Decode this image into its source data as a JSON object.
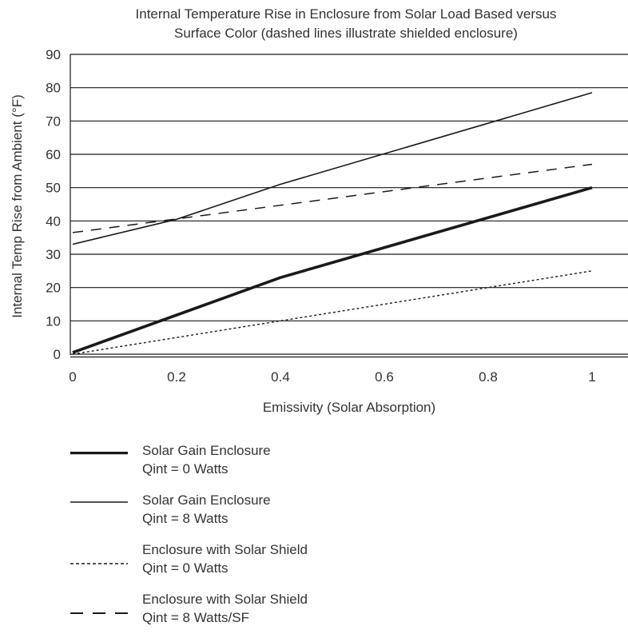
{
  "chart_data": {
    "type": "line",
    "title": [
      "Internal Temperature Rise in Enclosure from Solar Load Based versus",
      "Surface Color (dashed lines illustrate shielded enclosure)"
    ],
    "xlabel": "Emissivity (Solar Absorption)",
    "ylabel": "Internal Temp Rise from Ambient (°F)",
    "xlim": [
      0,
      1.07
    ],
    "ylim": [
      0,
      90
    ],
    "x_ticks": [
      "0",
      "0.2",
      "0.4",
      "0.6",
      "0.8",
      "1"
    ],
    "x_tick_values": [
      0,
      0.2,
      0.4,
      0.6,
      0.8,
      1
    ],
    "y_ticks": [
      "0",
      "10",
      "20",
      "30",
      "40",
      "50",
      "60",
      "70",
      "80",
      "90"
    ],
    "y_tick_values": [
      0,
      10,
      20,
      30,
      40,
      50,
      60,
      70,
      80,
      90
    ],
    "grid": "horizontal",
    "legend_position": "bottom",
    "series": [
      {
        "name": [
          "Solar Gain Enclosure",
          "Qint = 0 Watts"
        ],
        "style": "thick-solid",
        "x": [
          0,
          0.4,
          1
        ],
        "y": [
          0.5,
          23,
          50
        ]
      },
      {
        "name": [
          "Solar Gain Enclosure",
          "Qint = 8 Watts"
        ],
        "style": "solid",
        "x": [
          0,
          0.2,
          0.4,
          1
        ],
        "y": [
          33,
          40.5,
          51,
          78.5
        ]
      },
      {
        "name": [
          "Enclosure with Solar Shield",
          "Qint = 0 Watts"
        ],
        "style": "dotted",
        "x": [
          0,
          1
        ],
        "y": [
          0,
          25
        ]
      },
      {
        "name": [
          "Enclosure with Solar Shield",
          "Qint = 8 Watts/SF"
        ],
        "style": "dashed",
        "x": [
          0,
          1
        ],
        "y": [
          36.5,
          57
        ]
      }
    ],
    "colors": {
      "line": "#1a1a1a",
      "grid": "#1a1a1a",
      "text": "#333333"
    }
  }
}
